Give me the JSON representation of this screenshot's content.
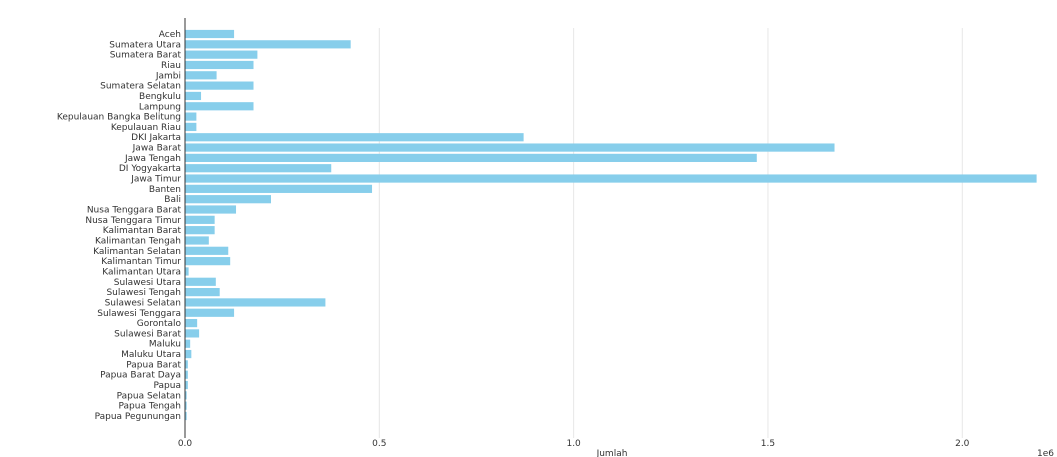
{
  "chart_data": {
    "type": "bar",
    "orientation": "horizontal",
    "categories": [
      "Aceh",
      "Sumatera Utara",
      "Sumatera Barat",
      "Riau",
      "Jambi",
      "Sumatera Selatan",
      "Bengkulu",
      "Lampung",
      "Kepulauan Bangka Belitung",
      "Kepulauan Riau",
      "DKI Jakarta",
      "Jawa Barat",
      "Jawa Tengah",
      "DI Yogyakarta",
      "Jawa Timur",
      "Banten",
      "Bali",
      "Nusa Tenggara Barat",
      "Nusa Tenggara Timur",
      "Kalimantan Barat",
      "Kalimantan Tengah",
      "Kalimantan Selatan",
      "Kalimantan Timur",
      "Kalimantan Utara",
      "Sulawesi Utara",
      "Sulawesi Tengah",
      "Sulawesi Selatan",
      "Sulawesi Tenggara",
      "Gorontalo",
      "Sulawesi Barat",
      "Maluku",
      "Maluku Utara",
      "Papua Barat",
      "Papua Barat Daya",
      "Papua",
      "Papua Selatan",
      "Papua Tengah",
      "Papua Pegunungan"
    ],
    "values": [
      0.125,
      0.425,
      0.185,
      0.175,
      0.08,
      0.175,
      0.04,
      0.175,
      0.028,
      0.028,
      0.87,
      1.67,
      1.47,
      0.375,
      2.19,
      0.48,
      0.22,
      0.13,
      0.075,
      0.075,
      0.06,
      0.11,
      0.115,
      0.008,
      0.078,
      0.088,
      0.36,
      0.125,
      0.03,
      0.035,
      0.012,
      0.015,
      0.006,
      0.006,
      0.006,
      0.003,
      0.003,
      0.003
    ],
    "xlabel": "Jumlah",
    "ylabel": "",
    "xlim": [
      0,
      2.2
    ],
    "xticks": [
      "0.0",
      "0.5",
      "1.0",
      "1.5",
      "2.0"
    ],
    "x_offset_label": "1e6",
    "grid": "vertical",
    "colors": {
      "bar": "#87ceeb",
      "grid": "#e6e6e6",
      "axis": "#333333",
      "text": "#333333"
    }
  }
}
